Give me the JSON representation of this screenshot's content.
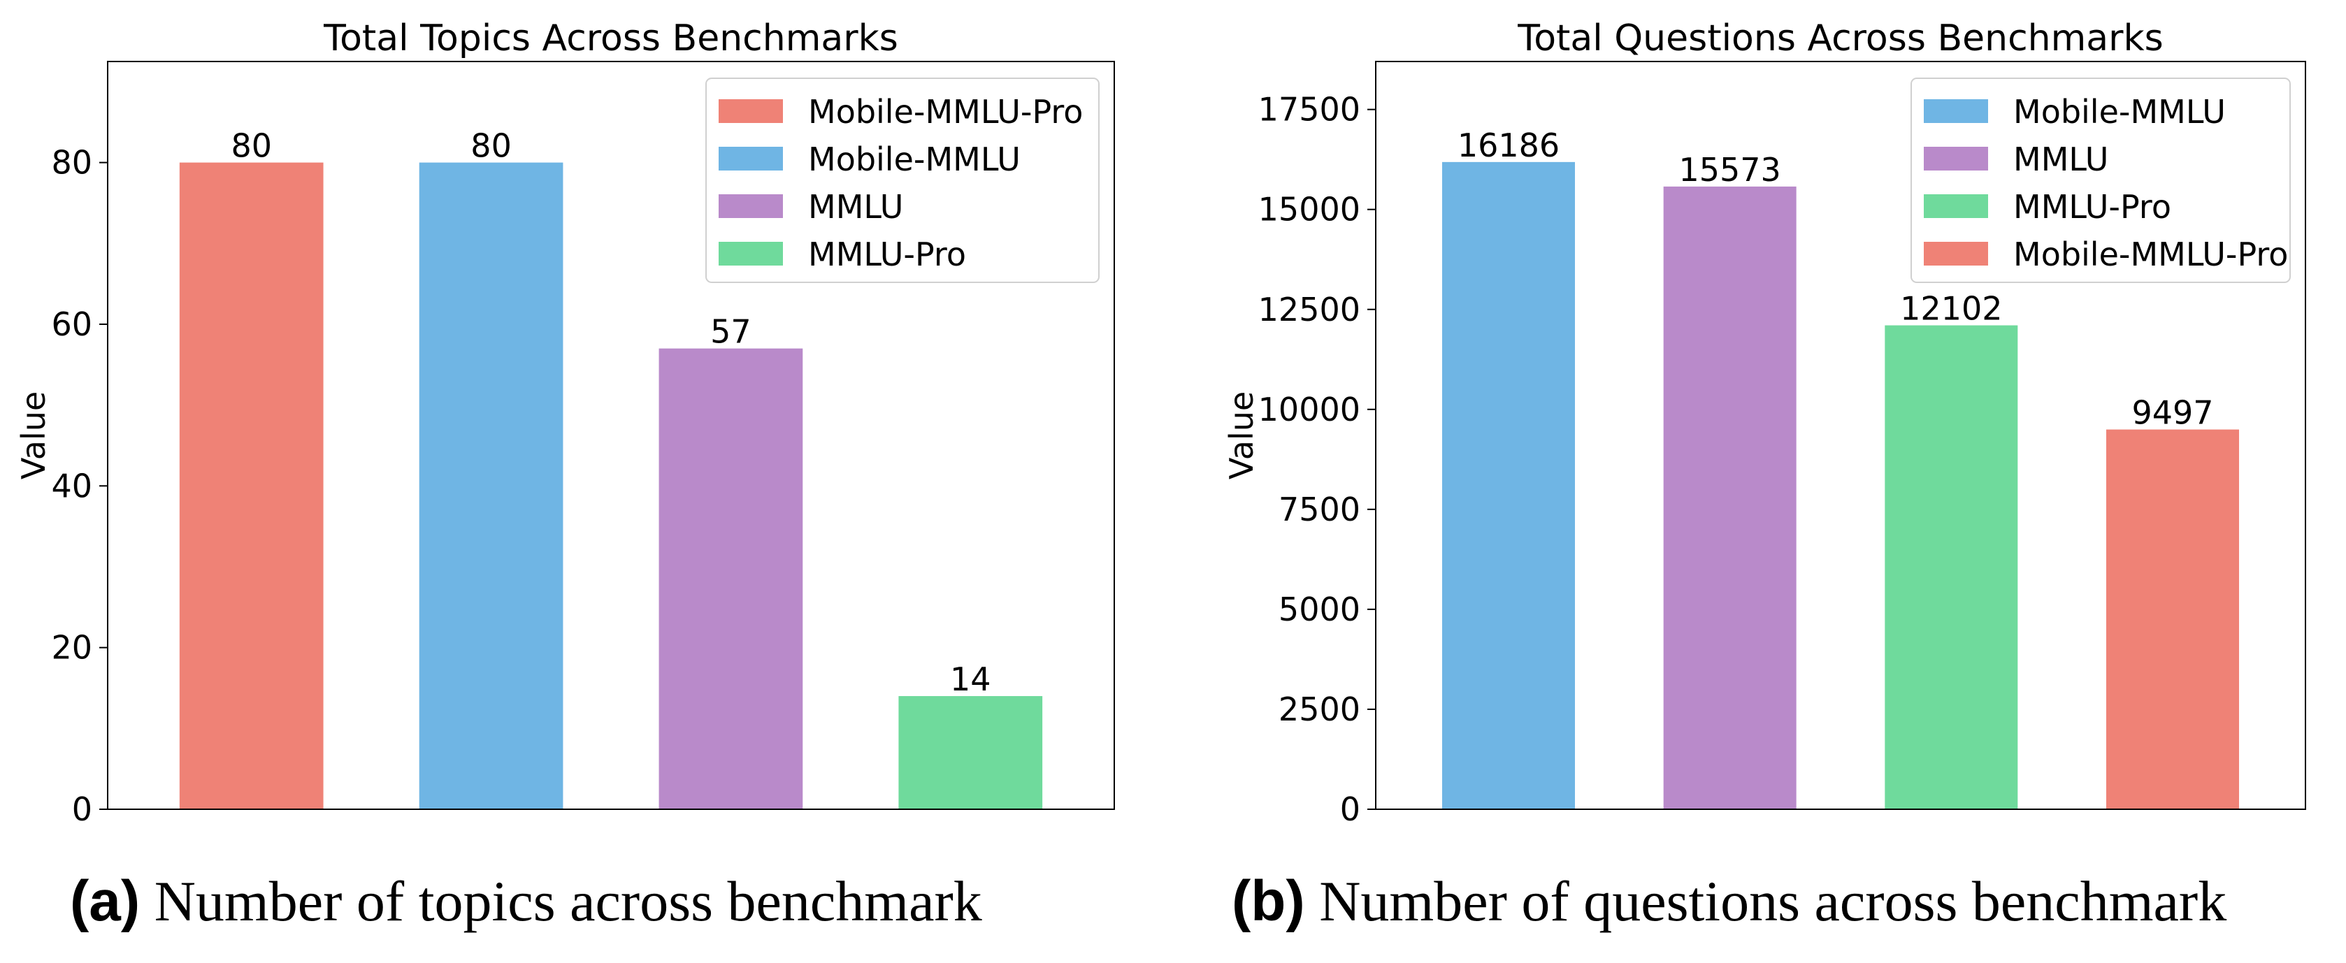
{
  "chart_data": [
    {
      "type": "bar",
      "title": "Total Topics Across Benchmarks",
      "xlabel": "",
      "ylabel": "Value",
      "categories": [
        "Mobile-MMLU-Pro",
        "Mobile-MMLU",
        "MMLU",
        "MMLU-Pro"
      ],
      "values": [
        80,
        80,
        57,
        14
      ],
      "colors": [
        "#EF8276",
        "#6FB5E4",
        "#B98ACA",
        "#6FDA9C"
      ],
      "ylim": [
        0,
        92.5
      ],
      "yticks": [
        0,
        20,
        40,
        60,
        80
      ],
      "legend": "top-right",
      "grid": false,
      "caption_label": "(a)",
      "caption_text": "Number of topics across benchmark"
    },
    {
      "type": "bar",
      "title": "Total Questions Across Benchmarks",
      "xlabel": "",
      "ylabel": "Value",
      "categories": [
        "Mobile-MMLU",
        "MMLU",
        "MMLU-Pro",
        "Mobile-MMLU-Pro"
      ],
      "values": [
        16186,
        15573,
        12102,
        9497
      ],
      "colors": [
        "#6FB5E4",
        "#B98ACA",
        "#6FDA9C",
        "#EF8276"
      ],
      "ylim": [
        0,
        18700
      ],
      "yticks": [
        0,
        2500,
        5000,
        7500,
        10000,
        12500,
        15000,
        17500
      ],
      "legend": "top-right",
      "grid": false,
      "caption_label": "(b)",
      "caption_text": "Number of questions across benchmark"
    }
  ]
}
